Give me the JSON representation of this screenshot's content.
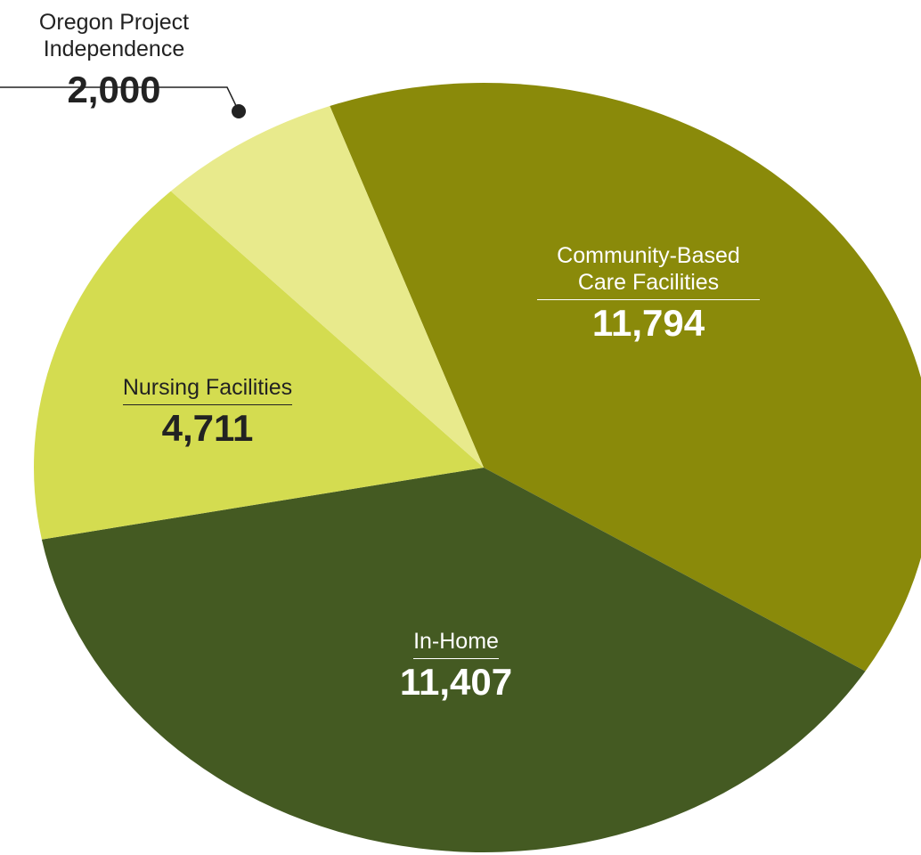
{
  "chart_data": {
    "type": "pie",
    "categories": [
      "Community-Based Care Facilities",
      "In-Home",
      "Nursing Facilities",
      "Oregon Project Independence"
    ],
    "values": [
      11794,
      11407,
      4711,
      2000
    ],
    "value_labels": [
      "11,794",
      "11,407",
      "4,711",
      "2,000"
    ],
    "colors": [
      "#8a8a0a",
      "#445a22",
      "#d4dc50",
      "#e8ea8c"
    ]
  }
}
